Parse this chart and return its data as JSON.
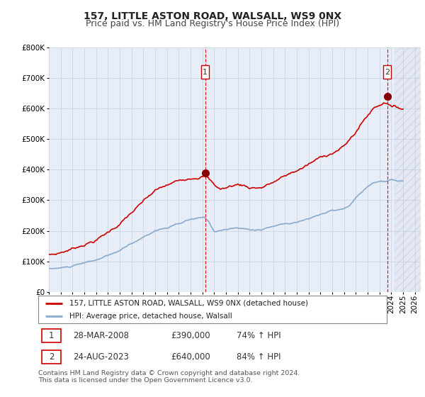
{
  "title": "157, LITTLE ASTON ROAD, WALSALL, WS9 0NX",
  "subtitle": "Price paid vs. HM Land Registry's House Price Index (HPI)",
  "ytick_vals": [
    0,
    100000,
    200000,
    300000,
    400000,
    500000,
    600000,
    700000,
    800000
  ],
  "ylim": [
    0,
    800000
  ],
  "xlim_start": 1995.0,
  "xlim_end": 2026.5,
  "sale1_x": 2008.24,
  "sale1_y": 390000,
  "sale1_label": "28-MAR-2008",
  "sale1_price": "£390,000",
  "sale1_hpi": "74% ↑ HPI",
  "sale2_x": 2023.65,
  "sale2_y": 640000,
  "sale2_label": "24-AUG-2023",
  "sale2_price": "£640,000",
  "sale2_hpi": "84% ↑ HPI",
  "line1_color": "#cc0000",
  "line2_color": "#88aacc",
  "marker_color": "#cc0000",
  "vline_color": "#cc0000",
  "bg_color": "#e8eef8",
  "legend_line1": "157, LITTLE ASTON ROAD, WALSALL, WS9 0NX (detached house)",
  "legend_line2": "HPI: Average price, detached house, Walsall",
  "footer": "Contains HM Land Registry data © Crown copyright and database right 2024.\nThis data is licensed under the Open Government Licence v3.0.",
  "title_fontsize": 10,
  "subtitle_fontsize": 9,
  "tick_fontsize": 7.5,
  "grid_color": "#c8d0e0"
}
